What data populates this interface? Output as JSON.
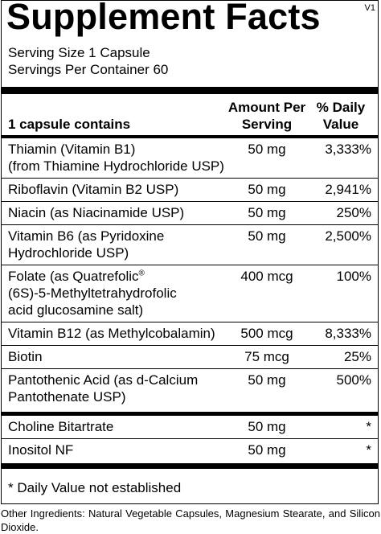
{
  "header": {
    "title": "Supplement Facts",
    "version": "V1",
    "serving_size": "Serving Size 1 Capsule",
    "servings_per_container": "Servings Per Container 60"
  },
  "table": {
    "columns": {
      "label": "1 capsule contains",
      "amount": [
        "Amount Per",
        "Serving"
      ],
      "daily_value": [
        "% Daily",
        "Value"
      ]
    },
    "sections": [
      {
        "rows": [
          {
            "name": [
              "Thiamin (Vitamin B1)",
              "(from Thiamine Hydrochloride USP)"
            ],
            "amount": "50 mg",
            "daily_value": "3,333%"
          },
          {
            "name": [
              "Riboflavin (Vitamin B2 USP)"
            ],
            "amount": "50 mg",
            "daily_value": "2,941%"
          },
          {
            "name": [
              "Niacin (as Niacinamide USP)"
            ],
            "amount": "50 mg",
            "daily_value": "250%"
          },
          {
            "name": [
              "Vitamin B6 (as Pyridoxine",
              "Hydrochloride USP)"
            ],
            "amount": "50 mg",
            "daily_value": "2,500%"
          },
          {
            "name": [
              "Folate (as Quatrefolic",
              "(6S)-5-Methyltetrahydrofolic",
              "acid glucosamine salt)"
            ],
            "name_superscript": "®",
            "amount": "400 mcg",
            "daily_value": "100%"
          },
          {
            "name": [
              "Vitamin B12 (as Methylcobalamin)"
            ],
            "amount": "500 mcg",
            "daily_value": "8,333%"
          },
          {
            "name": [
              "Biotin"
            ],
            "amount": "75 mcg",
            "daily_value": "25%"
          },
          {
            "name": [
              "Pantothenic Acid (as d-Calcium",
              "Pantothenate USP)"
            ],
            "amount": "50 mg",
            "daily_value": "500%"
          }
        ]
      },
      {
        "rows": [
          {
            "name": [
              "Choline Bitartrate"
            ],
            "amount": "50 mg",
            "daily_value": "*"
          },
          {
            "name": [
              "Inositol NF"
            ],
            "amount": "50 mg",
            "daily_value": "*"
          }
        ]
      }
    ],
    "footnote": "* Daily Value not established"
  },
  "other_ingredients": "Other Ingredients: Natural Vegetable Capsules, Magnesium Stearate, and Silicon Dioxide."
}
